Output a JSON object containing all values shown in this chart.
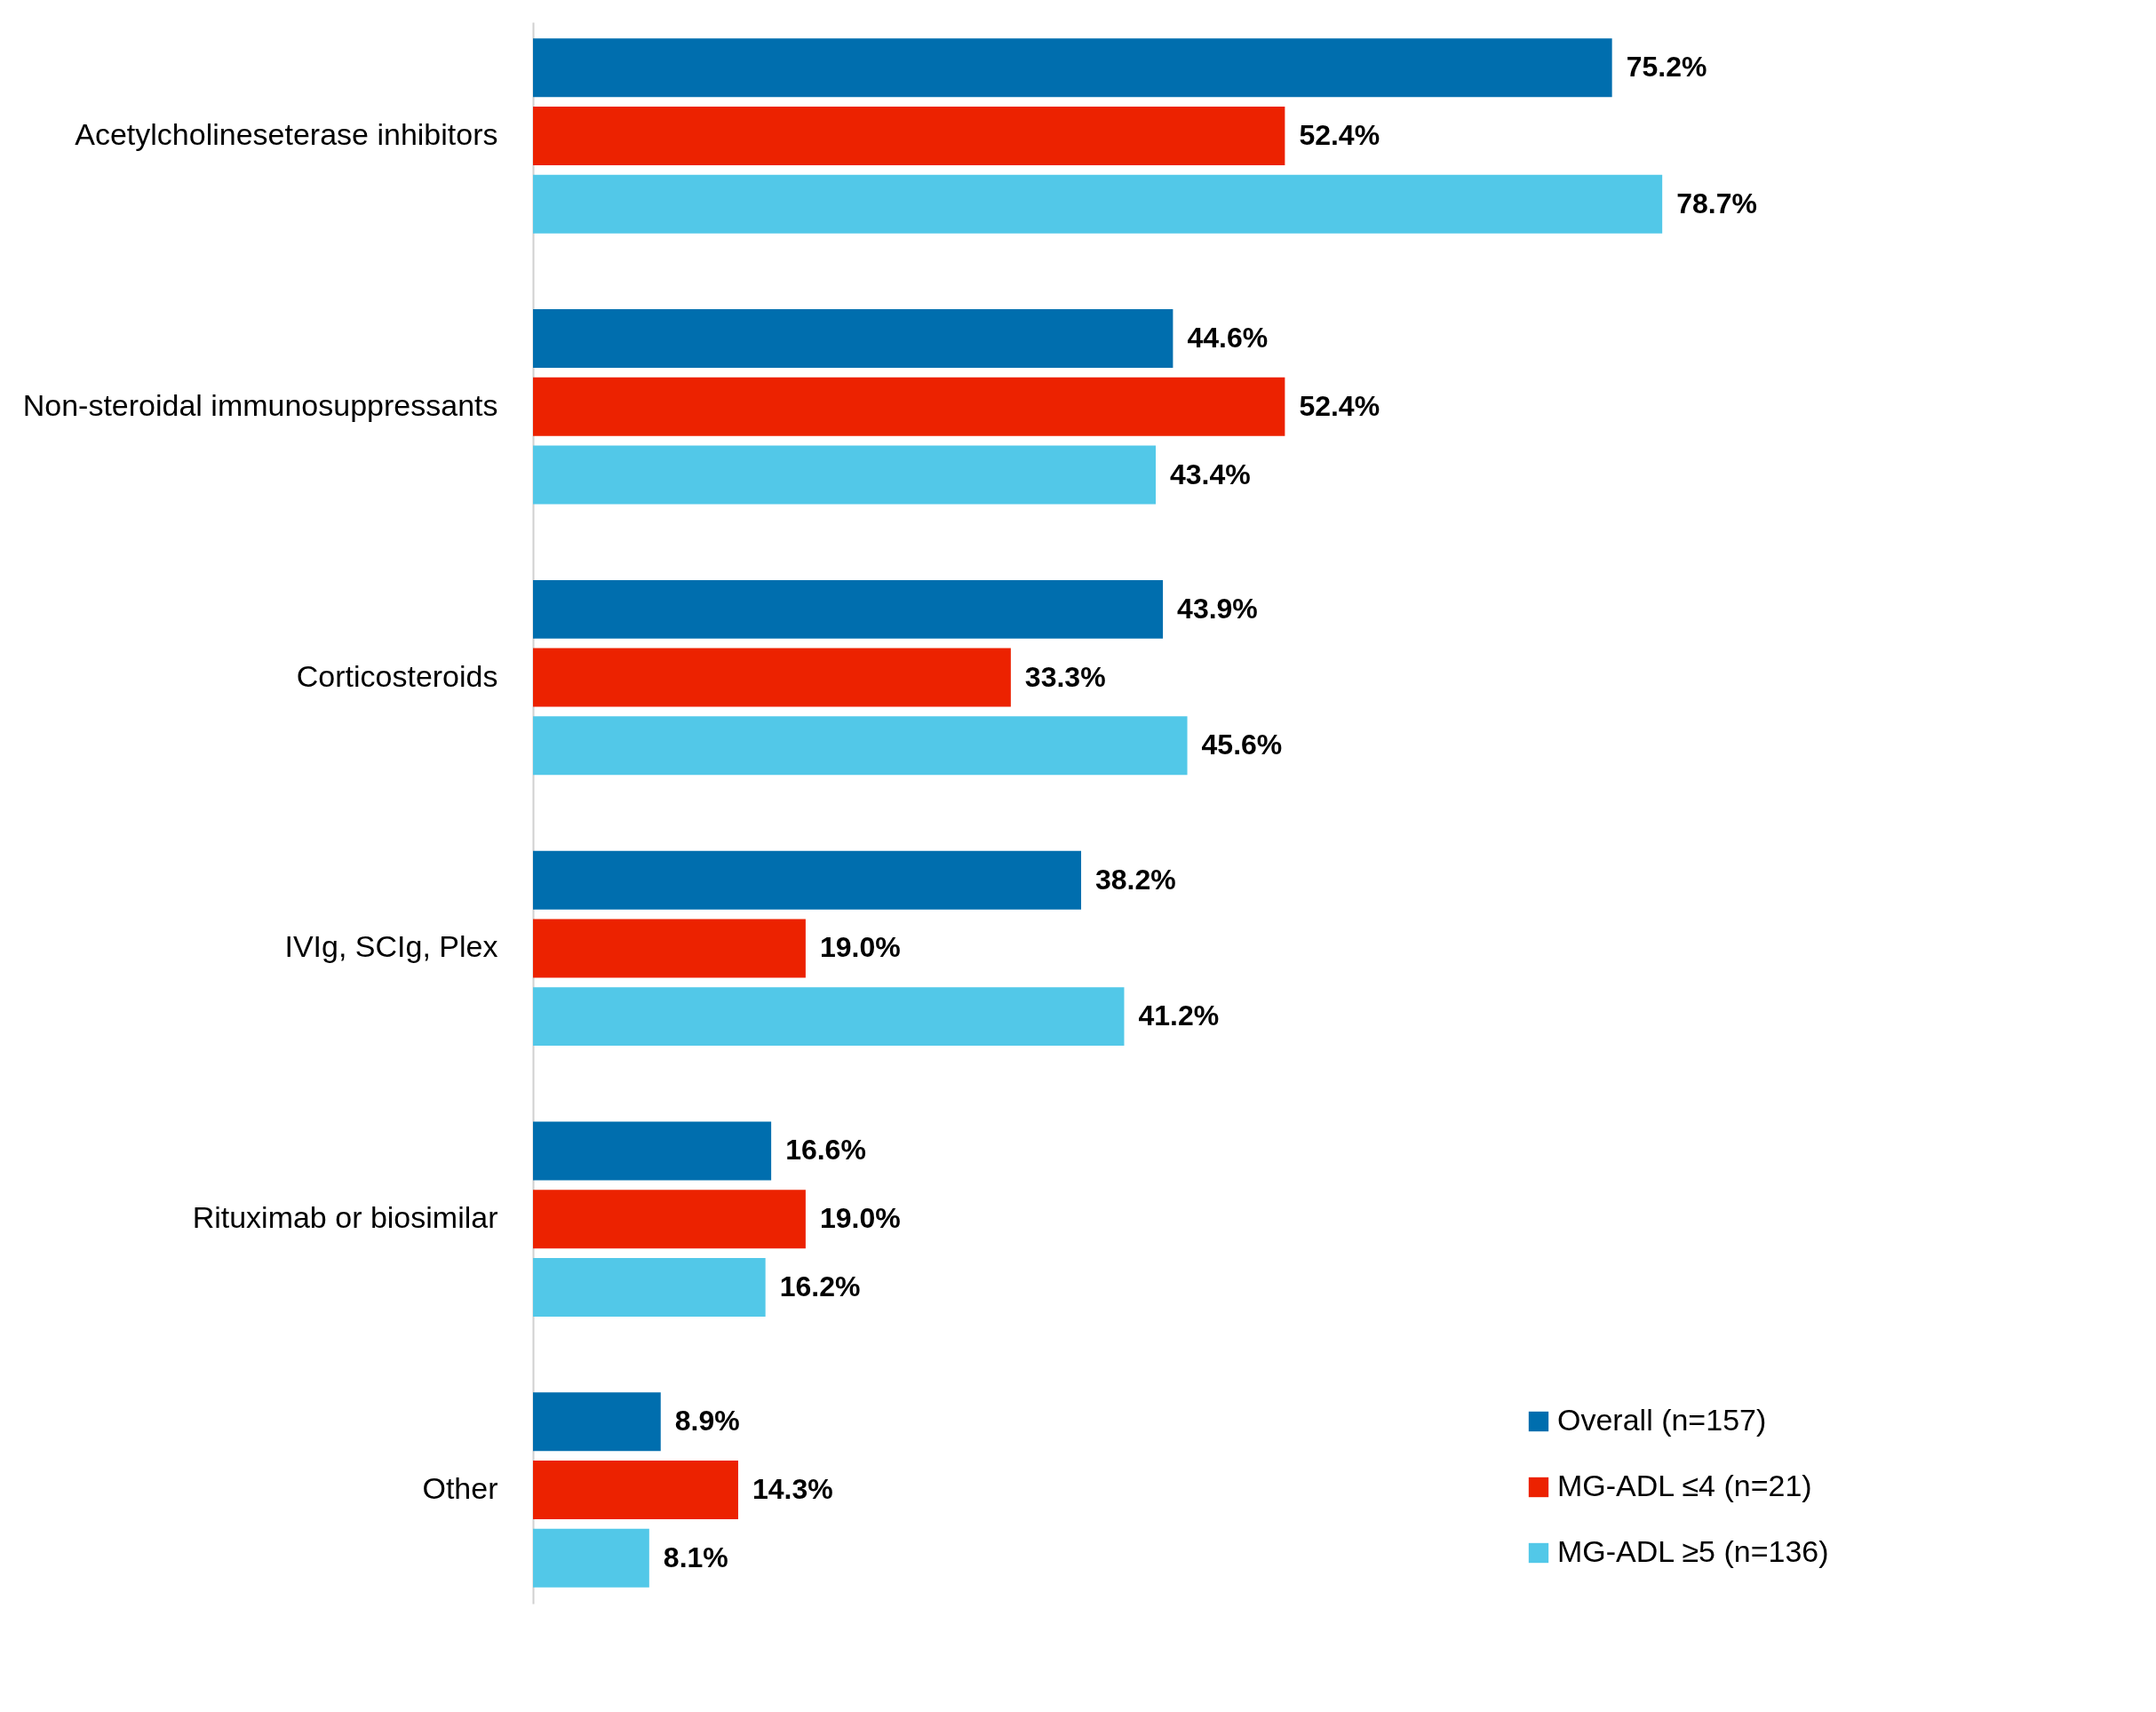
{
  "chart_data": {
    "type": "bar",
    "orientation": "horizontal",
    "categories": [
      "Acetylcholineseterase inhibitors",
      "Non-steroidal immunosuppressants",
      "Corticosteroids",
      "IVIg, SCIg, Plex",
      "Rituximab or biosimilar",
      "Other"
    ],
    "series": [
      {
        "name": "Overall (n=157)",
        "color": "#006eae",
        "values": [
          75.2,
          44.6,
          43.9,
          38.2,
          16.6,
          8.9
        ],
        "value_labels": [
          "75.2%",
          "44.6%",
          "43.9%",
          "38.2%",
          "16.6%",
          "8.9%"
        ]
      },
      {
        "name": "MG-ADL ≤4 (n=21)",
        "color": "#ec2200",
        "values": [
          52.4,
          52.4,
          33.3,
          19.0,
          19.0,
          14.3
        ],
        "value_labels": [
          "52.4%",
          "52.4%",
          "33.3%",
          "19.0%",
          "19.0%",
          "14.3%"
        ]
      },
      {
        "name": "MG-ADL ≥5 (n=136)",
        "color": "#52c8e8",
        "values": [
          78.7,
          43.4,
          45.6,
          41.2,
          16.2,
          8.1
        ],
        "value_labels": [
          "78.7%",
          "43.4%",
          "45.6%",
          "41.2%",
          "16.2%",
          "8.1%"
        ]
      }
    ],
    "legend": "bottom right",
    "grid": false
  }
}
